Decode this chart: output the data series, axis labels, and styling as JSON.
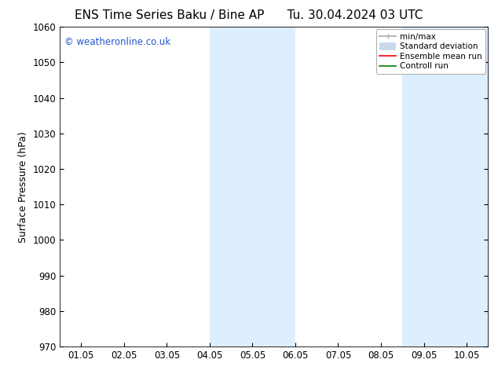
{
  "title_left": "ENS Time Series Baku / Bine AP",
  "title_right": "Tu. 30.04.2024 03 UTC",
  "ylabel": "Surface Pressure (hPa)",
  "ylim": [
    970,
    1060
  ],
  "yticks": [
    970,
    980,
    990,
    1000,
    1010,
    1020,
    1030,
    1040,
    1050,
    1060
  ],
  "xtick_labels": [
    "01.05",
    "02.05",
    "03.05",
    "04.05",
    "05.05",
    "06.05",
    "07.05",
    "08.05",
    "09.05",
    "10.05"
  ],
  "xtick_positions": [
    0,
    1,
    2,
    3,
    4,
    5,
    6,
    7,
    8,
    9
  ],
  "xlim": [
    -0.5,
    9.5
  ],
  "shaded_bands": [
    {
      "x_start": 3.0,
      "x_end": 5.0
    },
    {
      "x_start": 7.5,
      "x_end": 9.5
    }
  ],
  "shaded_color": "#ddeeff",
  "background_color": "#ffffff",
  "watermark_text": "© weatheronline.co.uk",
  "watermark_color": "#2255cc",
  "legend_items": [
    {
      "label": "min/max",
      "color": "#aaaaaa",
      "lw": 1.2
    },
    {
      "label": "Standard deviation",
      "color": "#c8daea",
      "lw": 7
    },
    {
      "label": "Ensemble mean run",
      "color": "#ff0000",
      "lw": 1.2
    },
    {
      "label": "Controll run",
      "color": "#008000",
      "lw": 1.2
    }
  ],
  "title_fontsize": 11,
  "tick_fontsize": 8.5,
  "ylabel_fontsize": 9,
  "watermark_fontsize": 8.5
}
